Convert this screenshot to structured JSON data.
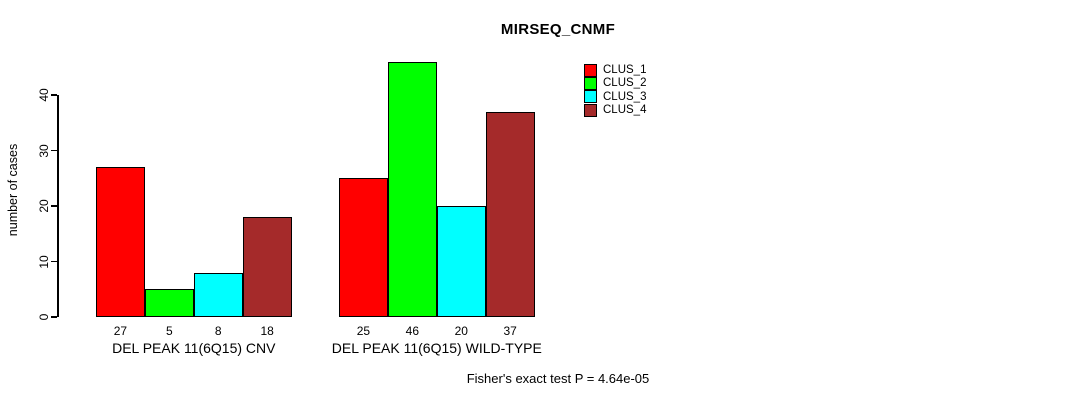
{
  "chart_data": {
    "type": "bar",
    "title": "MIRSEQ_CNMF",
    "ylabel": "number of cases",
    "xlabel": "",
    "ylim": [
      0,
      40
    ],
    "yticks": [
      0,
      10,
      20,
      30,
      40
    ],
    "grid": false,
    "legend_position": "top-right-outside",
    "categories": [
      "DEL PEAK 11(6Q15) CNV",
      "DEL PEAK 11(6Q15) WILD-TYPE"
    ],
    "series": [
      {
        "name": "CLUS_1",
        "color": "#FF0000",
        "values": [
          27,
          25
        ]
      },
      {
        "name": "CLUS_2",
        "color": "#00FF00",
        "values": [
          5,
          46
        ]
      },
      {
        "name": "CLUS_3",
        "color": "#00FFFF",
        "values": [
          8,
          20
        ]
      },
      {
        "name": "CLUS_4",
        "color": "#A52A2A",
        "values": [
          18,
          37
        ]
      }
    ],
    "bar_value_labels": [
      [
        27,
        5,
        8,
        18
      ],
      [
        25,
        46,
        20,
        37
      ]
    ],
    "annotation": "Fisher's exact test P = 4.64e-05",
    "axis_color": "#000000",
    "background_color": "#FFFFFF"
  }
}
